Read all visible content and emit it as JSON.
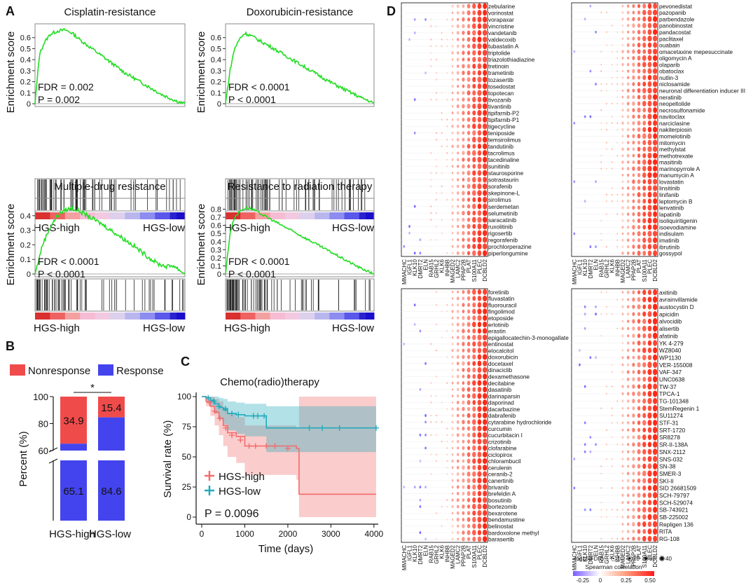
{
  "panel_labels": {
    "a": "A",
    "b": "B",
    "c": "C",
    "d": "D"
  },
  "colors": {
    "green": "#22dd22",
    "red": "#f04b4b",
    "blue": "#4444ee",
    "teal": "#22aabb",
    "salmon": "#f26d6d"
  },
  "chart_data": [
    {
      "id": "A-cisplatin",
      "type": "line",
      "title": "Cisplatin-resistance",
      "ylabel": "Enrichment score",
      "ylim": [
        0,
        0.7
      ],
      "yticks": [
        "0",
        "0.1",
        "0.2",
        "0.3",
        "0.4",
        "0.5",
        "0.6"
      ],
      "x": [
        0,
        3,
        6,
        10,
        15,
        20,
        25,
        30,
        40,
        50,
        60,
        70,
        80,
        85,
        90,
        95,
        100
      ],
      "y": [
        0,
        0.45,
        0.55,
        0.63,
        0.66,
        0.67,
        0.64,
        0.58,
        0.48,
        0.38,
        0.28,
        0.2,
        0.12,
        0.08,
        0.05,
        0.02,
        0
      ],
      "stats": [
        "FDR = 0.002",
        "P = 0.002"
      ],
      "rank_labels": [
        "HGS-high",
        "HGS-low"
      ]
    },
    {
      "id": "A-doxorubicin",
      "type": "line",
      "title": "Doxorubicin-resistance",
      "ylabel": "Enrichment score",
      "ylim": [
        0,
        0.7
      ],
      "yticks": [
        "0",
        "0.1",
        "0.2",
        "0.3",
        "0.4",
        "0.5",
        "0.6"
      ],
      "x": [
        0,
        3,
        6,
        10,
        13,
        17,
        22,
        30,
        40,
        50,
        60,
        70,
        80,
        86,
        92,
        96,
        100
      ],
      "y": [
        0,
        0.3,
        0.5,
        0.6,
        0.64,
        0.62,
        0.58,
        0.52,
        0.44,
        0.36,
        0.28,
        0.2,
        0.13,
        0.09,
        0.05,
        0.03,
        0
      ],
      "stats": [
        "FDR < 0.0001",
        "P < 0.0001"
      ],
      "rank_labels": [
        "HGS-high",
        "HGS-low"
      ]
    },
    {
      "id": "A-multidrug",
      "type": "line",
      "title": "Multiple-drug resistance",
      "ylabel": "Enrichment score",
      "ylim": [
        0,
        0.5
      ],
      "yticks": [
        "0",
        "0.1",
        "0.2",
        "0.3",
        "0.4"
      ],
      "x": [
        0,
        5,
        10,
        15,
        20,
        25,
        30,
        35,
        45,
        55,
        65,
        75,
        82,
        88,
        92,
        96,
        100
      ],
      "y": [
        0,
        0.2,
        0.32,
        0.4,
        0.44,
        0.45,
        0.43,
        0.4,
        0.34,
        0.27,
        0.2,
        0.12,
        0.07,
        0.05,
        0.06,
        0.03,
        0
      ],
      "stats": [
        "FDR < 0.0001",
        "P < 0.0001"
      ],
      "rank_labels": [
        "HGS-high",
        "HGS-low"
      ]
    },
    {
      "id": "A-radiation",
      "type": "line",
      "title": "Resistance to radiation therapy",
      "ylabel": "Enrichment score",
      "ylim": [
        0,
        0.9
      ],
      "yticks": [
        "0",
        "0.1",
        "0.2",
        "0.3",
        "0.4",
        "0.5",
        "0.6",
        "0.7",
        "0.8"
      ],
      "x": [
        0,
        3,
        6,
        10,
        14,
        18,
        25,
        35,
        45,
        55,
        65,
        75,
        85,
        90,
        95,
        100
      ],
      "y": [
        0,
        0.5,
        0.7,
        0.78,
        0.82,
        0.8,
        0.73,
        0.63,
        0.53,
        0.43,
        0.33,
        0.23,
        0.13,
        0.08,
        0.04,
        0
      ],
      "stats": [
        "FDR < 0.0001",
        "P < 0.0001"
      ],
      "rank_labels": [
        "HGS-high",
        "HGS-low"
      ]
    },
    {
      "id": "B",
      "type": "bar",
      "ylabel": "Percent (%)",
      "categories": [
        "HGS-high",
        "HGS-low"
      ],
      "series": [
        {
          "name": "Response",
          "values": [
            65.1,
            84.6
          ]
        },
        {
          "name": "Nonresponse",
          "values": [
            34.9,
            15.4
          ]
        }
      ],
      "legend": [
        "Nonresponse",
        "Response"
      ],
      "yticks_top": [
        "60",
        "80",
        "100"
      ],
      "significance": "*"
    },
    {
      "id": "C",
      "type": "line",
      "title": "Chemo(radio)therapy",
      "xlabel": "Time (days)",
      "ylabel": "Survival rate (%)",
      "xlim": [
        0,
        4000
      ],
      "ylim": [
        0,
        100
      ],
      "xticks": [
        "0",
        "1000",
        "2000",
        "3000",
        "4000"
      ],
      "yticks": [
        "0",
        "25",
        "50",
        "75",
        "100"
      ],
      "series": [
        {
          "name": "HGS-high",
          "x": [
            0,
            100,
            200,
            300,
            400,
            500,
            600,
            800,
            1000,
            2200,
            2260,
            4050
          ],
          "y": [
            100,
            96,
            92,
            87,
            82,
            76,
            70,
            67,
            59,
            57,
            19,
            19
          ]
        },
        {
          "name": "HGS-low",
          "x": [
            0,
            100,
            200,
            300,
            400,
            500,
            600,
            800,
            1000,
            1500,
            4050
          ],
          "y": [
            100,
            99,
            97,
            94,
            91,
            89,
            86,
            85,
            84,
            74,
            74
          ]
        }
      ],
      "pvalue": "P = 0.0096"
    },
    {
      "id": "D",
      "type": "scatter",
      "genes": [
        "MMACHC",
        "IGFL1",
        "KLK10",
        "DMRT2",
        "ELN",
        "RAB15",
        "GRHL2",
        "KLK6",
        "INHBB",
        "MAGED2",
        "LAMC2",
        "PPAP2B",
        "PLAT",
        "S100A11",
        "PLEC",
        "DCBLD2"
      ],
      "drug_panels": [
        [
          "zebularine",
          "vorinostat",
          "vorapaxar",
          "vincristine",
          "vandetanib",
          "valdecoxib",
          "tubastatin A",
          "triptolide",
          "triazolothiadiazine",
          "tretinoin",
          "trametinib",
          "tozasertib",
          "tosedostat",
          "topotecan",
          "tivozanib",
          "tivantinib",
          "tipifarnib-P2",
          "tipifarnib-P1",
          "tigecycline",
          "teniposide",
          "temsirolimus",
          "tandutinib",
          "tacrolimus",
          "tacedinaline",
          "sunitinib",
          "staurosporine",
          "sotrastaurin",
          "sorafenib",
          "skepinone-L",
          "sirolimus",
          "serdemetan",
          "selumetinib",
          "saracatinib",
          "ruxolitinib",
          "rigosertib",
          "regorafenib",
          "prochlorperazine",
          "piperlongumine"
        ],
        [
          "pevonedistat",
          "pazopanib",
          "parbendazole",
          "panobinostat",
          "pandacostat",
          "paclitaxel",
          "ouabain",
          "omacetaxine mepesuccinate",
          "oligomycin A",
          "olaparib",
          "obatoclax",
          "nutlin-3",
          "niclosamide",
          "neuronal differentiation inducer III",
          "neratinib",
          "neopeltolide",
          "necrosulfonamide",
          "navitoclax",
          "narciclasine",
          "nakiterpiosin",
          "momelotinib",
          "mitomycin",
          "methylstat",
          "methotrexate",
          "masitinib",
          "marinopyrrole A",
          "manumycin A",
          "lovastatin",
          "linsitinib",
          "linifanib",
          "leptomycin B",
          "lenvatinib",
          "lapatinib",
          "isoliquiritigenin",
          "isoevodiamine",
          "indisulam",
          "imatinib",
          "ibrutinib",
          "gossypol"
        ],
        [
          "foretinib",
          "fluvastatin",
          "fluorouracil",
          "fingolimod",
          "etoposide",
          "erlotinib",
          "erastin",
          "epigallocatechin-3-monogallate",
          "entinostat",
          "elocalcitol",
          "doxorubicin",
          "docetaxel",
          "dinaciclib",
          "dexamethasone",
          "decitabine",
          "dasatinib",
          "darinaparsin",
          "daporinad",
          "dacarbazine",
          "dabrafenib",
          "cytarabine hydrochloride",
          "curcumin",
          "cucurbitacin I",
          "crizotinib",
          "clofarabine",
          "ciclopirox",
          "chlorambucil",
          "cerulenin",
          "ceranib-2",
          "canertinib",
          "brivanib",
          "brefeldin A",
          "bosutinib",
          "bortezomib",
          "bexarotene",
          "bendamustine",
          "belinostat",
          "bardoxolone methyl",
          "barasertib"
        ],
        [
          "axitinib",
          "avrainvillamide",
          "austocystin D",
          "apicidin",
          "alvocidib",
          "alisertib",
          "afatinib",
          "YK 4-279",
          "WZ8040",
          "WP1130",
          "VER-155008",
          "VAF-347",
          "UNC0638",
          "TW-37",
          "TPCA-1",
          "TG-101348",
          "StemRegenin 1",
          "SU11274",
          "STF-31",
          "SRT-1720",
          "SR8278",
          "SR-II-138A",
          "SNX-2112",
          "SNS-032",
          "SN-38",
          "SMER-3",
          "SKI-II",
          "SID 26681509",
          "SCH-79797",
          "SCH-529074",
          "SB-743921",
          "SB-225002",
          "Repligen 136",
          "RITA",
          "RG-108"
        ]
      ],
      "size_legend_title": "-log10(FDR)",
      "size_legend_values": [
        "10",
        "20",
        "30",
        "40"
      ],
      "color_legend_title": "Spearman correlation",
      "color_ticks": [
        "-0.25",
        "0",
        "0.25",
        "0.50"
      ]
    }
  ]
}
